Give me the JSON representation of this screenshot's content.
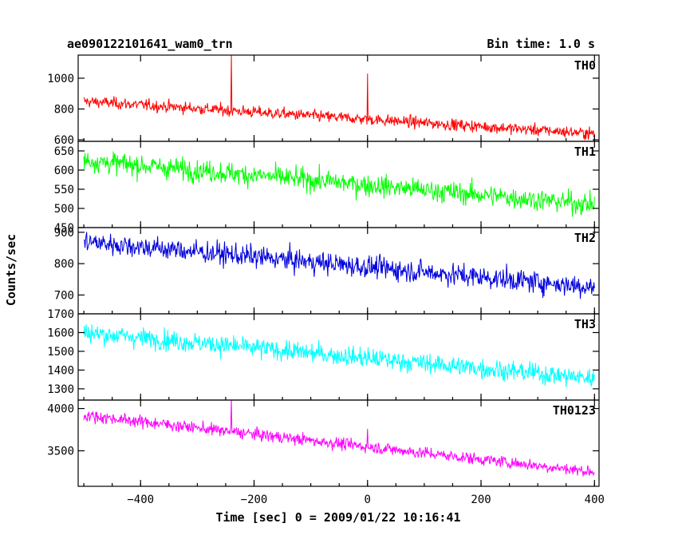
{
  "header": {
    "title": "ae090122101641_wam0_trn",
    "bin_time": "Bin time: 1.0 s"
  },
  "chart_data": {
    "type": "line",
    "xlabel": "Time [sec] 0 = 2009/01/22 10:16:41",
    "ylabel": "Counts/sec",
    "xlim": [
      -510,
      408
    ],
    "xticks": [
      -400,
      -200,
      0,
      200,
      400
    ],
    "panels": [
      {
        "name": "TH0",
        "color": "#ff0000",
        "ylim": [
          590,
          1150
        ],
        "yticks": [
          600,
          800,
          1000
        ],
        "start": 850,
        "end": 640,
        "noise": 32,
        "spikes": [
          {
            "x": -240,
            "y": 1160
          },
          {
            "x": 0,
            "y": 1030
          }
        ]
      },
      {
        "name": "TH1",
        "color": "#00ff00",
        "ylim": [
          450,
          675
        ],
        "yticks": [
          450,
          500,
          550,
          600,
          650
        ],
        "start": 625,
        "end": 510,
        "noise": 24,
        "spikes": []
      },
      {
        "name": "TH2",
        "color": "#0000dd",
        "ylim": [
          640,
          915
        ],
        "yticks": [
          700,
          800,
          900
        ],
        "start": 870,
        "end": 725,
        "noise": 30,
        "spikes": []
      },
      {
        "name": "TH3",
        "color": "#00ffff",
        "ylim": [
          1240,
          1700
        ],
        "yticks": [
          1300,
          1400,
          1500,
          1600,
          1700
        ],
        "start": 1600,
        "end": 1355,
        "noise": 45,
        "spikes": []
      },
      {
        "name": "TH0123",
        "color": "#ff00ff",
        "ylim": [
          3080,
          4100
        ],
        "yticks": [
          3500,
          4000
        ],
        "start": 3920,
        "end": 3250,
        "noise": 60,
        "spikes": [
          {
            "x": -240,
            "y": 4120
          },
          {
            "x": 0,
            "y": 3760
          }
        ]
      }
    ]
  }
}
